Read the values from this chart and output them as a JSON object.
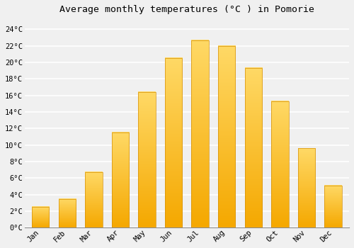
{
  "title": "Average monthly temperatures (°C ) in Pomorie",
  "months": [
    "Jan",
    "Feb",
    "Mar",
    "Apr",
    "May",
    "Jun",
    "Jul",
    "Aug",
    "Sep",
    "Oct",
    "Nov",
    "Dec"
  ],
  "values": [
    2.5,
    3.5,
    6.7,
    11.5,
    16.4,
    20.5,
    22.7,
    22.0,
    19.3,
    15.3,
    9.6,
    5.1
  ],
  "bar_color_top": "#FFD966",
  "bar_color_bottom": "#F5A800",
  "bar_edge_color": "#D4900A",
  "background_color": "#F0F0F0",
  "grid_color": "#FFFFFF",
  "yticks": [
    0,
    2,
    4,
    6,
    8,
    10,
    12,
    14,
    16,
    18,
    20,
    22,
    24
  ],
  "ytick_labels": [
    "0°C",
    "2°C",
    "4°C",
    "6°C",
    "8°C",
    "10°C",
    "12°C",
    "14°C",
    "16°C",
    "18°C",
    "20°C",
    "22°C",
    "24°C"
  ],
  "ylim": [
    0,
    25.5
  ],
  "title_fontsize": 9.5,
  "tick_fontsize": 7.5,
  "font_family": "monospace",
  "bar_width": 0.65
}
